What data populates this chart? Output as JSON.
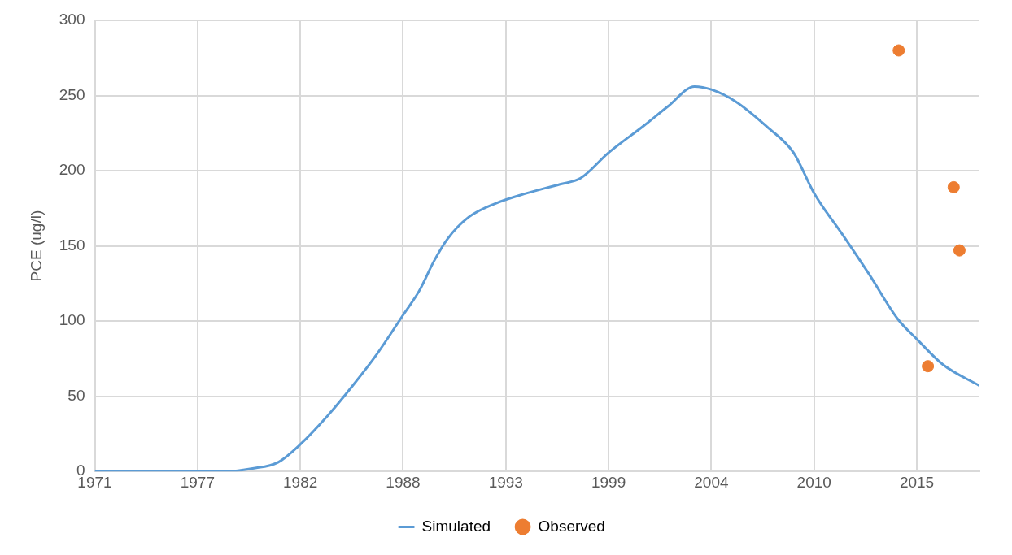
{
  "chart_data": {
    "type": "line",
    "ylabel": "PCE (ug/l)",
    "xlim": [
      1971.5,
      2018.85
    ],
    "xticks": [
      {
        "value": 1971.5,
        "label": "1971"
      },
      {
        "value": 1977,
        "label": "1977"
      },
      {
        "value": 1982.5,
        "label": "1982"
      },
      {
        "value": 1988,
        "label": "1988"
      },
      {
        "value": 1993.5,
        "label": "1993"
      },
      {
        "value": 1999,
        "label": "1999"
      },
      {
        "value": 2004.5,
        "label": "2004"
      },
      {
        "value": 2010,
        "label": "2010"
      },
      {
        "value": 2015.5,
        "label": "2015"
      }
    ],
    "ylim": [
      0,
      300
    ],
    "yticks": [
      0,
      50,
      100,
      150,
      200,
      250,
      300
    ],
    "grid": true,
    "legend": "bottom",
    "series": [
      {
        "name": "Simulated",
        "type": "line",
        "color": "#5b9bd5",
        "marker": "none",
        "line_style": "solid",
        "x": [
          1971.5,
          1978.6,
          1979.95,
          1981.3,
          1982.5,
          1983.96,
          1985.3,
          1986.6,
          1988.0,
          1988.86,
          1989.66,
          1990.4,
          1991.5,
          1992.9,
          1994.6,
          1996.4,
          1997.5,
          1999.0,
          2000.9,
          2002.2,
          2003.6,
          2004.5,
          2005.8,
          2007.5,
          2008.9,
          2010.0,
          2011.55,
          2012.9,
          2014.5,
          2015.5,
          2016.9,
          2018.85
        ],
        "values": [
          0,
          0,
          2,
          6,
          18,
          37,
          57,
          78,
          104,
          120,
          140,
          155,
          169,
          178,
          185,
          191,
          195,
          212,
          230,
          243,
          256,
          254,
          246,
          229,
          212,
          185,
          157,
          132,
          101,
          88,
          71,
          57
        ]
      },
      {
        "name": "Observed",
        "type": "scatter",
        "color": "#ed7d31",
        "marker": "circle",
        "x": [
          2014.53,
          2016.09,
          2017.47,
          2017.78
        ],
        "values": [
          280,
          70,
          189,
          147
        ]
      }
    ]
  }
}
